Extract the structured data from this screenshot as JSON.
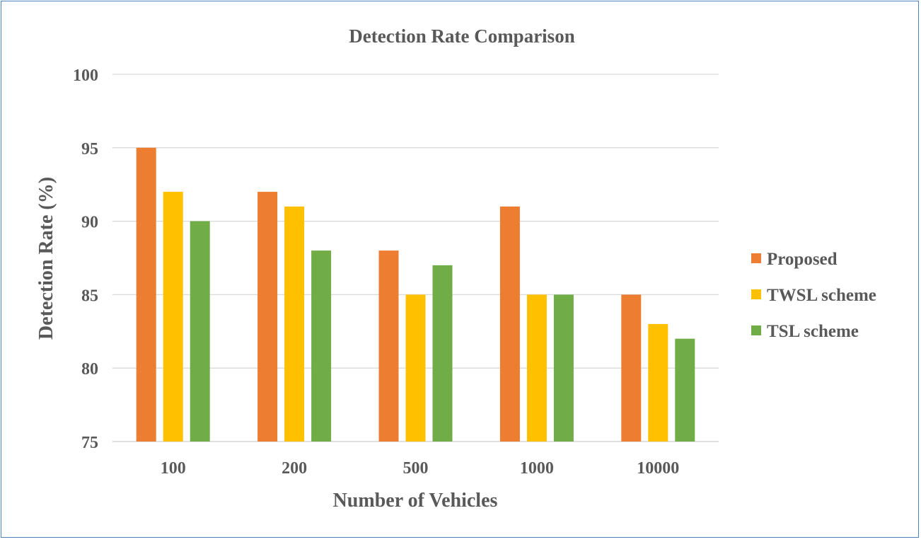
{
  "chart_data": {
    "type": "bar",
    "title": "Detection Rate Comparison",
    "xlabel": "Number  of Vehicles",
    "ylabel": "Detection Rate  (%)",
    "categories": [
      "100",
      "200",
      "500",
      "1000",
      "10000"
    ],
    "ylim": [
      75,
      100
    ],
    "yticks": [
      75,
      80,
      85,
      90,
      95,
      100
    ],
    "grid": true,
    "legend_position": "right",
    "series": [
      {
        "name": "Proposed",
        "color": "#ed7d31",
        "values": [
          95,
          92,
          88,
          91,
          85
        ]
      },
      {
        "name": "TWSL scheme",
        "color": "#ffc000",
        "values": [
          92,
          91,
          85,
          85,
          83
        ]
      },
      {
        "name": "TSL scheme",
        "color": "#70ad47",
        "values": [
          90,
          88,
          87,
          85,
          82
        ]
      }
    ]
  }
}
